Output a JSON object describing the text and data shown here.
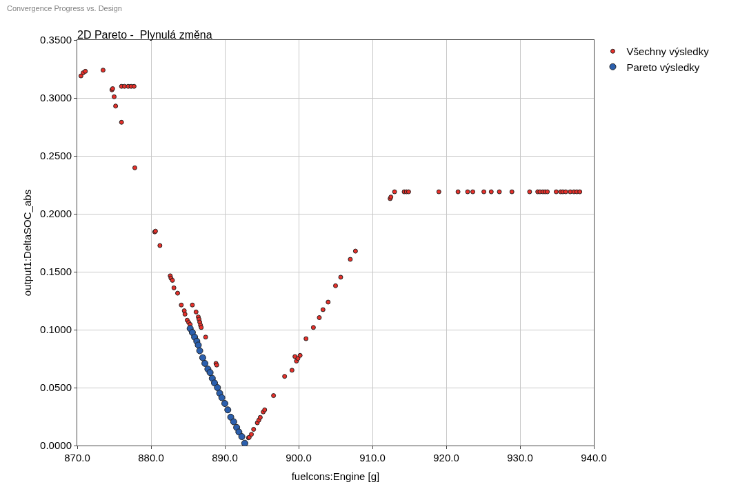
{
  "chart_data": {
    "type": "scatter",
    "title": "2D Pareto -  Plynulá změna",
    "subtitle": "Convergence Progress vs. Design",
    "xlabel": "fuelcons:Engine [g]",
    "ylabel": "output1:DeltaSOC_abs",
    "xlim": [
      870,
      940
    ],
    "xticks": [
      {
        "value": 870,
        "label": "870.0"
      },
      {
        "value": 880,
        "label": "880.0"
      },
      {
        "value": 890,
        "label": "890.0"
      },
      {
        "value": 900,
        "label": "900.0"
      },
      {
        "value": 910,
        "label": "910.0"
      },
      {
        "value": 920,
        "label": "920.0"
      },
      {
        "value": 930,
        "label": "930.0"
      },
      {
        "value": 940,
        "label": "940.0"
      }
    ],
    "ylim": [
      0,
      0.35
    ],
    "yticks": [
      {
        "value": 0,
        "label": "0.0000"
      },
      {
        "value": 0.05,
        "label": "0.0500"
      },
      {
        "value": 0.1,
        "label": "0.1000"
      },
      {
        "value": 0.15,
        "label": "0.1500"
      },
      {
        "value": 0.2,
        "label": "0.2000"
      },
      {
        "value": 0.25,
        "label": "0.2500"
      },
      {
        "value": 0.3,
        "label": "0.3000"
      },
      {
        "value": 0.35,
        "label": "0.3500"
      }
    ],
    "grid": true,
    "legend": "top right",
    "marker": "circle",
    "series": [
      {
        "name": "Všechny výsledky",
        "color": "#e8302a",
        "x": [
          870.5,
          870.8,
          871.1,
          873.5,
          874.7,
          874.8,
          875.0,
          875.2,
          876.0,
          876.0,
          876.4,
          876.9,
          877.3,
          877.7,
          877.8,
          880.5,
          880.6,
          881.2,
          882.6,
          882.7,
          882.9,
          883.1,
          883.6,
          884.1,
          884.5,
          884.6,
          884.9,
          885.1,
          885.3,
          885.6,
          886.1,
          886.4,
          886.5,
          886.6,
          886.7,
          886.8,
          887.4,
          888.8,
          888.9,
          893.2,
          893.3,
          893.6,
          893.9,
          894.4,
          894.6,
          894.8,
          895.2,
          895.4,
          896.6,
          898.1,
          899.1,
          899.5,
          899.7,
          899.9,
          900.2,
          901.0,
          902.0,
          902.8,
          903.3,
          904.0,
          905.0,
          905.7,
          907.0,
          907.7,
          912.4,
          912.5,
          913.0,
          914.3,
          914.6,
          914.9,
          919.0,
          921.6,
          922.9,
          923.6,
          925.1,
          926.1,
          927.2,
          928.9,
          931.3,
          932.4,
          932.7,
          933.1,
          933.4,
          933.7,
          934.9,
          935.5,
          935.8,
          936.2,
          936.8,
          937.3,
          937.7,
          938.1
        ],
        "values": [
          0.319,
          0.3217,
          0.323,
          0.324,
          0.307,
          0.308,
          0.301,
          0.293,
          0.279,
          0.31,
          0.31,
          0.31,
          0.31,
          0.31,
          0.2397,
          0.1844,
          0.185,
          0.1726,
          0.1465,
          0.1445,
          0.1426,
          0.1361,
          0.1315,
          0.1213,
          0.1163,
          0.1134,
          0.1082,
          0.1062,
          0.1045,
          0.1213,
          0.1153,
          0.111,
          0.109,
          0.1065,
          0.1039,
          0.1019,
          0.0936,
          0.0709,
          0.0695,
          0.0067,
          0.0071,
          0.0097,
          0.014,
          0.0196,
          0.0219,
          0.0243,
          0.029,
          0.0308,
          0.0431,
          0.0597,
          0.065,
          0.0768,
          0.0729,
          0.0752,
          0.0778,
          0.0922,
          0.1019,
          0.1104,
          0.1173,
          0.1238,
          0.1379,
          0.1453,
          0.1607,
          0.1678,
          0.2131,
          0.2145,
          0.219,
          0.219,
          0.219,
          0.219,
          0.219,
          0.219,
          0.219,
          0.219,
          0.219,
          0.219,
          0.219,
          0.219,
          0.219,
          0.219,
          0.219,
          0.219,
          0.219,
          0.219,
          0.219,
          0.219,
          0.219,
          0.219,
          0.219,
          0.219,
          0.219,
          0.219
        ]
      },
      {
        "name": "Pareto výsledky",
        "color": "#2b5fad",
        "x": [
          885.3,
          885.6,
          885.9,
          886.2,
          886.4,
          886.6,
          887.0,
          887.3,
          887.7,
          888.0,
          888.3,
          888.6,
          889.0,
          889.3,
          889.6,
          890.0,
          890.4,
          890.8,
          891.2,
          891.6,
          891.9,
          892.3,
          892.7
        ],
        "values": [
          0.101,
          0.0976,
          0.0936,
          0.09,
          0.0867,
          0.0818,
          0.0758,
          0.0709,
          0.066,
          0.063,
          0.058,
          0.054,
          0.05,
          0.0452,
          0.0413,
          0.0363,
          0.0308,
          0.0245,
          0.0205,
          0.0156,
          0.0117,
          0.0077,
          0.002
        ]
      }
    ]
  }
}
